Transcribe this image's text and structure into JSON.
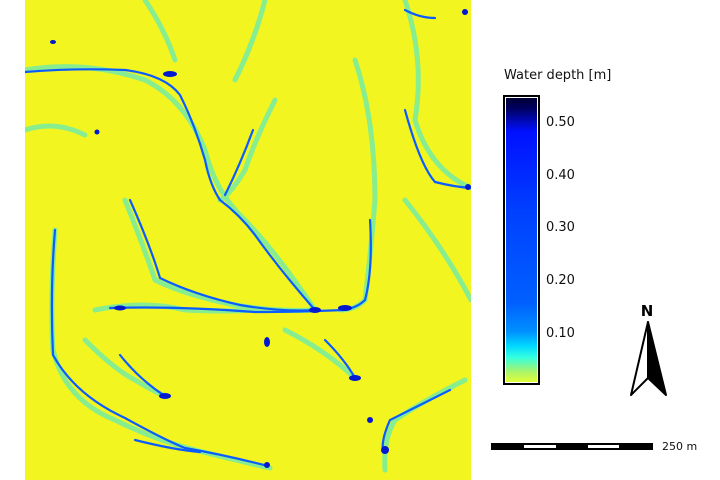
{
  "map": {
    "background_color": "#f5f71e",
    "shallow_color": "#22e6f0",
    "deep_color": "#0033ff"
  },
  "legend": {
    "title": "Water depth [m]",
    "ticks": [
      "0.50",
      "0.40",
      "0.30",
      "0.20",
      "0.10"
    ],
    "range": [
      0,
      0.55
    ],
    "colormap": [
      "#e6ff33",
      "#33ffe0",
      "#0090ff",
      "#0040ff",
      "#0010ff",
      "#000030"
    ]
  },
  "scale_bar": {
    "label": "250 m"
  },
  "north_arrow": {
    "label": "N"
  }
}
